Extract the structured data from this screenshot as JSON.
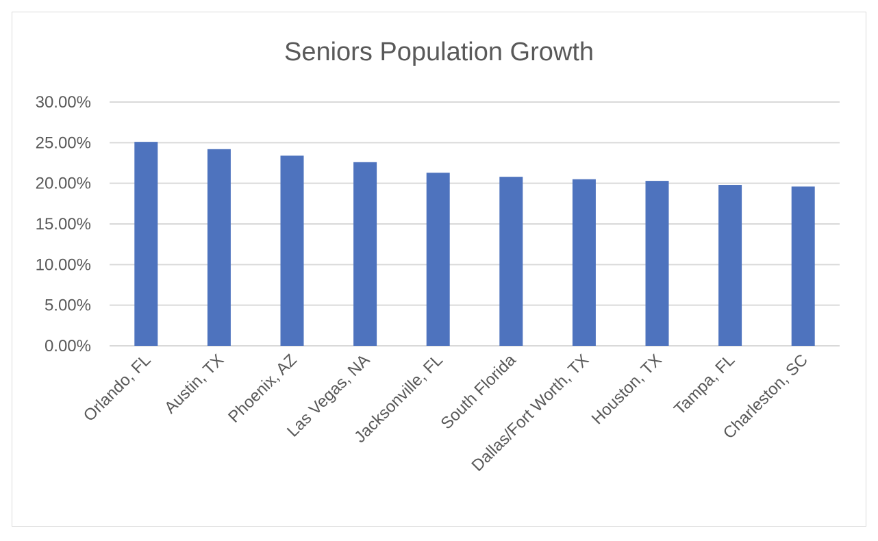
{
  "chart_data": {
    "type": "bar",
    "title": "Seniors Population Growth",
    "categories": [
      "Orlando, FL",
      "Austin, TX",
      "Phoenix, AZ",
      "Las Vegas, NA",
      "Jacksonville, FL",
      "South Florida",
      "Dallas/Fort Worth, TX",
      "Houston, TX",
      "Tampa, FL",
      "Charleston, SC"
    ],
    "values": [
      25.1,
      24.2,
      23.4,
      22.6,
      21.3,
      20.8,
      20.5,
      20.3,
      19.8,
      19.6
    ],
    "ylim": [
      0,
      30
    ],
    "yticks": [
      "0.00%",
      "5.00%",
      "10.00%",
      "15.00%",
      "20.00%",
      "25.00%",
      "30.00%"
    ],
    "grid": true,
    "legend": "none",
    "bar_color": "#4e73be"
  }
}
